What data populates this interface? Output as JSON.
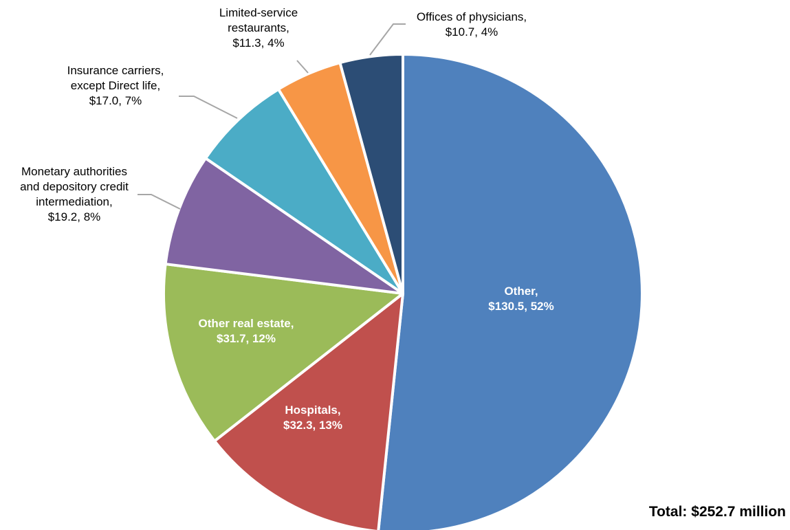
{
  "chart_data": {
    "type": "pie",
    "total_label": "Total: $252.7 million",
    "slices": [
      {
        "name": "Other",
        "value": 130.5,
        "percent": 52,
        "color": "#4F81BD",
        "label_lines": [
          "Other,",
          "$130.5, 52%"
        ]
      },
      {
        "name": "Hospitals",
        "value": 32.3,
        "percent": 13,
        "color": "#C0504D",
        "label_lines": [
          "Hospitals,",
          "$32.3, 13%"
        ]
      },
      {
        "name": "Other real estate",
        "value": 31.7,
        "percent": 12,
        "color": "#9BBB59",
        "label_lines": [
          "Other real estate,",
          "$31.7, 12%"
        ]
      },
      {
        "name": "Monetary authorities and depository credit intermediation",
        "value": 19.2,
        "percent": 8,
        "color": "#8064A2",
        "label_lines": [
          "Monetary authorities",
          "and depository credit",
          "intermediation,",
          "$19.2, 8%"
        ]
      },
      {
        "name": "Insurance carriers, except Direct life",
        "value": 17.0,
        "percent": 7,
        "color": "#4BACC6",
        "label_lines": [
          "Insurance carriers,",
          "except Direct life,",
          "$17.0, 7%"
        ]
      },
      {
        "name": "Limited-service restaurants",
        "value": 11.3,
        "percent": 4,
        "color": "#F79646",
        "label_lines": [
          "Limited-service",
          "restaurants,",
          "$11.3, 4%"
        ]
      },
      {
        "name": "Offices of physicians",
        "value": 10.7,
        "percent": 4,
        "color": "#2C4D75",
        "label_lines": [
          "Offices of physicians,",
          "$10.7, 4%"
        ]
      }
    ]
  }
}
